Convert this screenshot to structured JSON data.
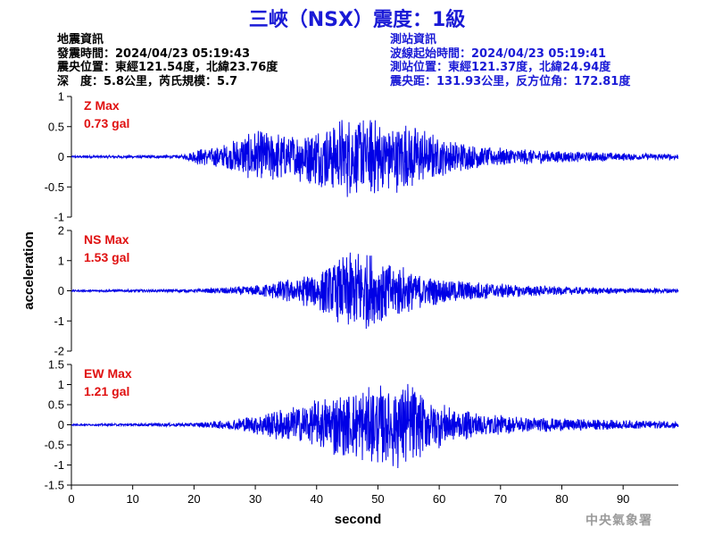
{
  "title": "三峽（NSX）震度：1級",
  "quake_info": {
    "heading": "地震資訊",
    "time": "發震時間：2024/04/23 05:19:43",
    "location": "震央位置：東經121.54度，北緯23.76度",
    "depth_mag": "深　度：5.8公里，芮氏規模：5.7"
  },
  "station_info": {
    "heading": "測站資訊",
    "wave_time": "波線起始時間：2024/04/23 05:19:41",
    "location": "測站位置：東經121.37度，北緯24.94度",
    "distance": "震央距：131.93公里，反方位角：172.81度"
  },
  "agency": "中央氣象署",
  "colors": {
    "title": "#1a1ad6",
    "trace": "#0000e6",
    "max_label": "#e01010"
  },
  "chart_data": {
    "type": "line",
    "xlabel": "second",
    "ylabel": "acceleration",
    "xlim": [
      0,
      99
    ],
    "xticks": [
      0,
      10,
      20,
      30,
      40,
      50,
      60,
      70,
      80,
      90
    ],
    "grid": false,
    "panels": [
      {
        "name": "Z",
        "max_label": "Z Max",
        "max_value": "0.73 gal",
        "ylim": [
          -1,
          1
        ],
        "yticks": [
          -1,
          -0.5,
          0,
          0.5,
          1
        ],
        "envelope": [
          [
            0,
            0.02
          ],
          [
            18,
            0.03
          ],
          [
            20,
            0.12
          ],
          [
            25,
            0.22
          ],
          [
            30,
            0.45
          ],
          [
            36,
            0.42
          ],
          [
            40,
            0.5
          ],
          [
            45,
            0.73
          ],
          [
            50,
            0.65
          ],
          [
            55,
            0.6
          ],
          [
            60,
            0.35
          ],
          [
            65,
            0.22
          ],
          [
            72,
            0.15
          ],
          [
            80,
            0.1
          ],
          [
            90,
            0.07
          ],
          [
            99,
            0.05
          ]
        ]
      },
      {
        "name": "NS",
        "max_label": "NS Max",
        "max_value": "1.53 gal",
        "ylim": [
          -2,
          2
        ],
        "yticks": [
          -2,
          -1,
          0,
          1,
          2
        ],
        "envelope": [
          [
            0,
            0.03
          ],
          [
            20,
            0.06
          ],
          [
            25,
            0.12
          ],
          [
            30,
            0.2
          ],
          [
            36,
            0.45
          ],
          [
            40,
            0.7
          ],
          [
            45,
            1.3
          ],
          [
            47,
            1.53
          ],
          [
            52,
            1.0
          ],
          [
            58,
            0.55
          ],
          [
            65,
            0.35
          ],
          [
            72,
            0.22
          ],
          [
            80,
            0.15
          ],
          [
            90,
            0.1
          ],
          [
            99,
            0.08
          ]
        ]
      },
      {
        "name": "EW",
        "max_label": "EW Max",
        "max_value": "1.21 gal",
        "ylim": [
          -1.5,
          1.5
        ],
        "yticks": [
          -1.5,
          -1,
          -0.5,
          0,
          0.5,
          1,
          1.5
        ],
        "envelope": [
          [
            0,
            0.02
          ],
          [
            20,
            0.05
          ],
          [
            25,
            0.12
          ],
          [
            30,
            0.25
          ],
          [
            36,
            0.5
          ],
          [
            40,
            0.7
          ],
          [
            45,
            0.9
          ],
          [
            50,
            1.0
          ],
          [
            54,
            1.21
          ],
          [
            58,
            0.75
          ],
          [
            62,
            0.45
          ],
          [
            70,
            0.25
          ],
          [
            80,
            0.17
          ],
          [
            90,
            0.12
          ],
          [
            99,
            0.1
          ]
        ]
      }
    ]
  }
}
